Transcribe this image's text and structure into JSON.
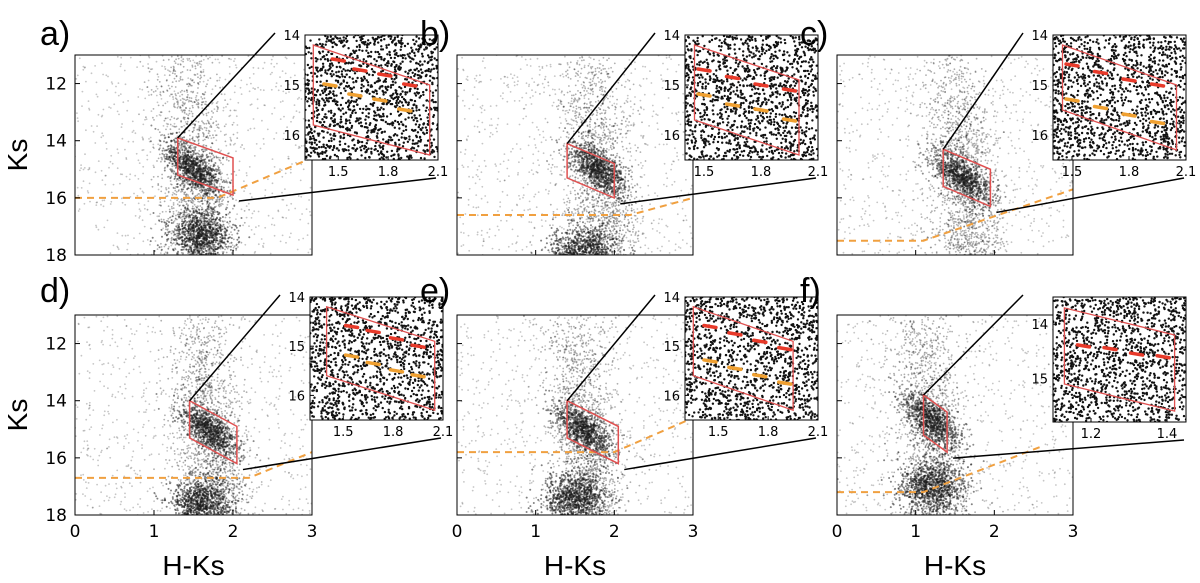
{
  "figure": {
    "colors": {
      "points": "#1a1a1a",
      "box": "#e05050",
      "cutoff": "#f0a040",
      "rc_line": "#e83a2a",
      "rc_line2": "#f0a030",
      "connector": "#000000"
    }
  },
  "chart_data": [
    {
      "type": "scatter",
      "label": "a)",
      "xlabel": "",
      "ylabel": "Ks",
      "xlim": [
        0,
        3
      ],
      "ylim": [
        18,
        11
      ],
      "yticks": [
        "12",
        "14",
        "16",
        "18"
      ],
      "xticks": [],
      "clump": {
        "Ks": 15.0,
        "HKs": 1.5
      },
      "dwarf_clump": {
        "Ks": 17.3,
        "HKs": 1.6
      },
      "selection_box": [
        [
          1.3,
          13.9
        ],
        [
          1.3,
          15.2
        ],
        [
          2.0,
          15.9
        ],
        [
          2.0,
          14.6
        ]
      ],
      "cutoff": [
        [
          0,
          16.0
        ],
        [
          1.8,
          16.0
        ],
        [
          3,
          14.6
        ]
      ],
      "inset": {
        "xlim": [
          1.3,
          2.1
        ],
        "ylim": [
          16.5,
          14
        ],
        "xticks": [
          "1.5",
          "1.8",
          "2.1"
        ],
        "yticks": [
          "14",
          "15",
          "16"
        ],
        "box": [
          [
            1.35,
            14.2
          ],
          [
            1.35,
            15.8
          ],
          [
            2.05,
            16.4
          ],
          [
            2.05,
            15.0
          ]
        ],
        "red": [
          [
            1.5,
            14.5
          ],
          [
            1.63,
            14.7
          ],
          [
            1.78,
            14.8
          ],
          [
            1.93,
            15.0
          ]
        ],
        "orange": [
          [
            1.45,
            15.0
          ],
          [
            1.6,
            15.2
          ],
          [
            1.75,
            15.3
          ],
          [
            1.9,
            15.5
          ]
        ]
      }
    },
    {
      "type": "scatter",
      "label": "b)",
      "xlabel": "",
      "ylabel": "",
      "xlim": [
        0,
        3
      ],
      "ylim": [
        18,
        11
      ],
      "yticks": [],
      "xticks": [],
      "clump": {
        "Ks": 15.0,
        "HKs": 1.8
      },
      "dwarf_clump": {
        "Ks": 17.9,
        "HKs": 1.6
      },
      "selection_box": [
        [
          1.4,
          14.1
        ],
        [
          1.4,
          15.3
        ],
        [
          2.0,
          16.0
        ],
        [
          2.0,
          14.8
        ]
      ],
      "cutoff": [
        [
          0,
          16.6
        ],
        [
          2.2,
          16.6
        ],
        [
          3,
          16.0
        ]
      ],
      "inset": {
        "xlim": [
          1.4,
          2.1
        ],
        "ylim": [
          16.5,
          14
        ],
        "xticks": [
          "1.5",
          "1.8",
          "2.1"
        ],
        "yticks": [
          "14",
          "15",
          "16"
        ],
        "box": [
          [
            1.45,
            14.2
          ],
          [
            1.45,
            15.7
          ],
          [
            2.0,
            16.4
          ],
          [
            2.0,
            14.9
          ]
        ],
        "red": [
          [
            1.5,
            14.7
          ],
          [
            1.65,
            14.85
          ],
          [
            1.8,
            15.0
          ],
          [
            1.95,
            15.1
          ]
        ],
        "orange": [
          [
            1.5,
            15.2
          ],
          [
            1.65,
            15.4
          ],
          [
            1.8,
            15.5
          ],
          [
            1.95,
            15.7
          ]
        ]
      }
    },
    {
      "type": "scatter",
      "label": "c)",
      "xlabel": "",
      "ylabel": "",
      "xlim": [
        0,
        3
      ],
      "ylim": [
        18,
        11
      ],
      "yticks": [],
      "xticks": [],
      "clump": {
        "Ks": 15.3,
        "HKs": 1.6
      },
      "dwarf_clump": null,
      "selection_box": [
        [
          1.35,
          14.3
        ],
        [
          1.35,
          15.6
        ],
        [
          1.95,
          16.3
        ],
        [
          1.95,
          15.0
        ]
      ],
      "cutoff": [
        [
          0,
          17.5
        ],
        [
          1.1,
          17.5
        ],
        [
          3,
          15.7
        ]
      ],
      "inset": {
        "xlim": [
          1.4,
          2.1
        ],
        "ylim": [
          16.5,
          14
        ],
        "xticks": [
          "1.5",
          "1.8",
          "2.1"
        ],
        "yticks": [
          "14",
          "15",
          "16"
        ],
        "box": [
          [
            1.45,
            14.2
          ],
          [
            1.45,
            15.5
          ],
          [
            2.05,
            16.3
          ],
          [
            2.05,
            15.0
          ]
        ],
        "red": [
          [
            1.5,
            14.6
          ],
          [
            1.65,
            14.75
          ],
          [
            1.8,
            14.9
          ],
          [
            1.95,
            15.0
          ]
        ],
        "orange": [
          [
            1.5,
            15.3
          ],
          [
            1.65,
            15.45
          ],
          [
            1.8,
            15.6
          ],
          [
            1.95,
            15.75
          ]
        ]
      }
    },
    {
      "type": "scatter",
      "label": "d)",
      "xlabel": "H-Ks",
      "ylabel": "Ks",
      "xlim": [
        0,
        3
      ],
      "ylim": [
        18,
        11
      ],
      "yticks": [
        "12",
        "14",
        "16",
        "18"
      ],
      "xticks": [
        "0",
        "1",
        "2",
        "3"
      ],
      "clump": {
        "Ks": 15.0,
        "HKs": 1.7
      },
      "dwarf_clump": {
        "Ks": 17.6,
        "HKs": 1.6
      },
      "selection_box": [
        [
          1.45,
          14.0
        ],
        [
          1.45,
          15.3
        ],
        [
          2.05,
          16.2
        ],
        [
          2.05,
          14.9
        ]
      ],
      "cutoff": [
        [
          0,
          16.7
        ],
        [
          2.2,
          16.7
        ],
        [
          3,
          15.8
        ]
      ],
      "inset": {
        "xlim": [
          1.3,
          2.1
        ],
        "ylim": [
          16.5,
          14
        ],
        "xticks": [
          "1.5",
          "1.8",
          "2.1"
        ],
        "yticks": [
          "14",
          "15",
          "16"
        ],
        "box": [
          [
            1.4,
            14.2
          ],
          [
            1.4,
            15.6
          ],
          [
            2.05,
            16.3
          ],
          [
            2.05,
            14.9
          ]
        ],
        "red": [
          [
            1.55,
            14.6
          ],
          [
            1.68,
            14.7
          ],
          [
            1.82,
            14.85
          ],
          [
            1.95,
            15.0
          ]
        ],
        "orange": [
          [
            1.55,
            15.2
          ],
          [
            1.68,
            15.35
          ],
          [
            1.82,
            15.5
          ],
          [
            1.95,
            15.6
          ]
        ]
      }
    },
    {
      "type": "scatter",
      "label": "e)",
      "xlabel": "H-Ks",
      "ylabel": "",
      "xlim": [
        0,
        3
      ],
      "ylim": [
        18,
        11
      ],
      "yticks": [],
      "xticks": [
        "0",
        "1",
        "2",
        "3"
      ],
      "clump": {
        "Ks": 15.0,
        "HKs": 1.6
      },
      "dwarf_clump": {
        "Ks": 17.4,
        "HKs": 1.5
      },
      "selection_box": [
        [
          1.4,
          14.0
        ],
        [
          1.4,
          15.3
        ],
        [
          2.05,
          16.2
        ],
        [
          2.05,
          14.9
        ]
      ],
      "cutoff": [
        [
          0,
          15.8
        ],
        [
          2.0,
          15.8
        ],
        [
          3,
          14.6
        ]
      ],
      "inset": {
        "xlim": [
          1.3,
          2.1
        ],
        "ylim": [
          16.5,
          14
        ],
        "xticks": [
          "1.5",
          "1.8",
          "2.1"
        ],
        "yticks": [
          "14",
          "15",
          "16"
        ],
        "box": [
          [
            1.35,
            14.2
          ],
          [
            1.35,
            15.6
          ],
          [
            1.95,
            16.3
          ],
          [
            1.95,
            14.9
          ]
        ],
        "red": [
          [
            1.45,
            14.6
          ],
          [
            1.6,
            14.75
          ],
          [
            1.75,
            14.9
          ],
          [
            1.9,
            15.05
          ]
        ],
        "orange": [
          [
            1.45,
            15.3
          ],
          [
            1.6,
            15.45
          ],
          [
            1.75,
            15.6
          ],
          [
            1.9,
            15.75
          ]
        ]
      }
    },
    {
      "type": "scatter",
      "label": "f)",
      "xlabel": "H-Ks",
      "ylabel": "",
      "xlim": [
        0,
        3
      ],
      "ylim": [
        18,
        11
      ],
      "yticks": [],
      "xticks": [
        "0",
        "1",
        "2",
        "3"
      ],
      "clump": {
        "Ks": 14.7,
        "HKs": 1.2
      },
      "dwarf_clump": {
        "Ks": 17.0,
        "HKs": 1.2
      },
      "selection_box": [
        [
          1.1,
          13.8
        ],
        [
          1.1,
          15.2
        ],
        [
          1.4,
          15.8
        ],
        [
          1.4,
          14.4
        ]
      ],
      "cutoff": [
        [
          0,
          17.2
        ],
        [
          1.1,
          17.2
        ],
        [
          2.6,
          15.6
        ]
      ],
      "inset": {
        "xlim": [
          1.1,
          1.45
        ],
        "ylim": [
          15.8,
          13.5
        ],
        "xticks": [
          "1.2",
          "1.4"
        ],
        "yticks": [
          "14",
          "15"
        ],
        "box": [
          [
            1.13,
            13.7
          ],
          [
            1.13,
            15.1
          ],
          [
            1.42,
            15.6
          ],
          [
            1.42,
            14.2
          ]
        ],
        "red": [
          [
            1.18,
            14.4
          ],
          [
            1.25,
            14.45
          ],
          [
            1.32,
            14.55
          ],
          [
            1.39,
            14.6
          ]
        ],
        "orange": []
      }
    }
  ]
}
